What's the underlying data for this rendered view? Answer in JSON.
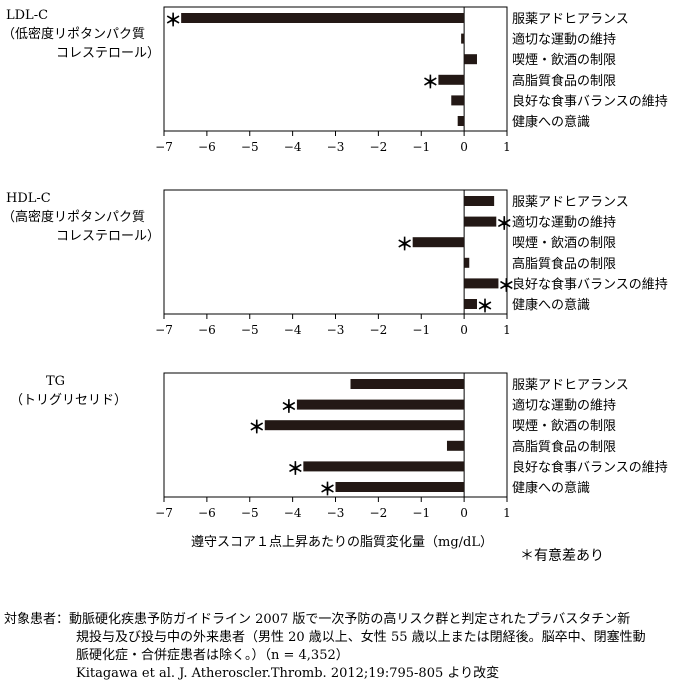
{
  "chart_data": {
    "type": "bar",
    "orientation": "horizontal",
    "xlabel": "遵守スコア１点上昇あたりの脂質変化量（mg/dL）",
    "xlim": [
      -7,
      1
    ],
    "xticks": [
      "−7",
      "−6",
      "−5",
      "−4",
      "−3",
      "−2",
      "−1",
      "0",
      "1"
    ],
    "categories": [
      "服薬アドヒアランス",
      "適切な運動の維持",
      "喫煙・飲酒の制限",
      "高脂質食品の制限",
      "良好な食事バランスの維持",
      "健康への意識"
    ],
    "significance_marker": "＊",
    "legend": "＊有意差あり",
    "panels": [
      {
        "label_lines": [
          "LDL-C",
          "（低密度リポタンパク質",
          "コレステロール）"
        ],
        "values": [
          -6.6,
          -0.07,
          0.3,
          -0.6,
          -0.3,
          -0.15
        ],
        "significant": [
          true,
          false,
          false,
          true,
          false,
          false
        ]
      },
      {
        "label_lines": [
          "HDL-C",
          "（高密度リポタンパク質",
          "コレステロール）"
        ],
        "values": [
          0.7,
          0.75,
          -1.2,
          0.12,
          0.8,
          0.3
        ],
        "significant": [
          false,
          true,
          true,
          false,
          true,
          true
        ]
      },
      {
        "label_lines": [
          "TG",
          "（トリグリセリド）"
        ],
        "values": [
          -2.65,
          -3.9,
          -4.65,
          -0.4,
          -3.75,
          -3.0
        ],
        "significant": [
          false,
          true,
          true,
          false,
          true,
          true
        ]
      }
    ]
  },
  "footnote": {
    "line1": "対象患者：動脈硬化疾患予防ガイドライン 2007 版で一次予防の高リスク群と判定されたプラバスタチン新",
    "line2": "規投与及び投与中の外来患者（男性 20 歳以上、女性 55 歳以上または閉経後。脳卒中、閉塞性動",
    "line3": "脈硬化症・合併症患者は除く。）（n = 4,352）",
    "line4": "Kitagawa et al. J. Atheroscler.Thromb. 2012;19:795-805 より改変"
  }
}
